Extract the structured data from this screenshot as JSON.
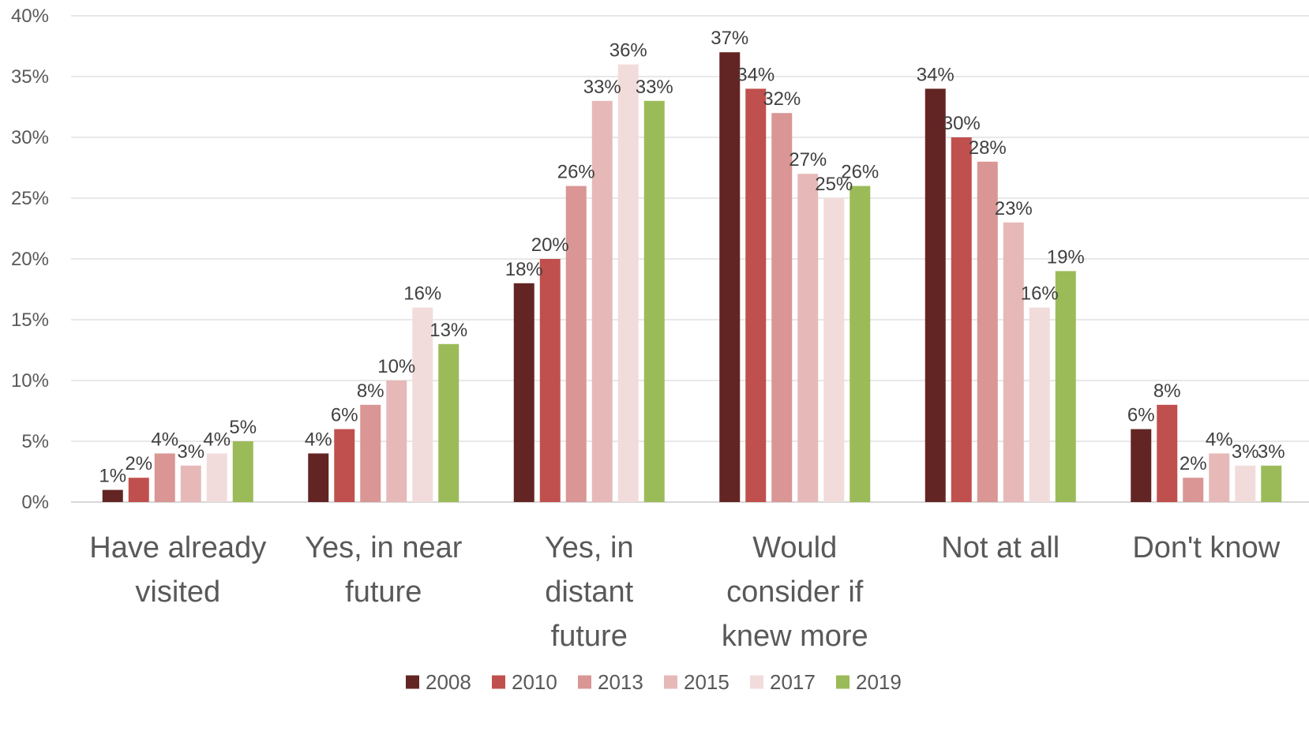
{
  "chart_data": {
    "type": "bar",
    "categories": [
      [
        "Have already",
        "visited"
      ],
      [
        "Yes, in near",
        "future"
      ],
      [
        "Yes, in",
        "distant",
        "future"
      ],
      [
        "Would",
        "consider if",
        "knew more"
      ],
      [
        "Not at all"
      ],
      [
        "Don't know"
      ]
    ],
    "series": [
      {
        "name": "2008",
        "color": "#632523",
        "values": [
          1,
          4,
          18,
          37,
          34,
          6
        ]
      },
      {
        "name": "2010",
        "color": "#C0504D",
        "values": [
          2,
          6,
          20,
          34,
          30,
          8
        ]
      },
      {
        "name": "2013",
        "color": "#D99694",
        "values": [
          4,
          8,
          26,
          32,
          28,
          2
        ]
      },
      {
        "name": "2015",
        "color": "#E6B9B8",
        "values": [
          3,
          10,
          33,
          27,
          23,
          4
        ]
      },
      {
        "name": "2017",
        "color": "#F2DCDB",
        "values": [
          4,
          16,
          36,
          25,
          16,
          3
        ]
      },
      {
        "name": "2019",
        "color": "#9BBB59",
        "values": [
          5,
          13,
          33,
          26,
          19,
          3
        ]
      }
    ],
    "ylim": [
      0,
      40
    ],
    "yticks": [
      "0%",
      "5%",
      "10%",
      "15%",
      "20%",
      "25%",
      "30%",
      "35%",
      "40%"
    ],
    "value_suffix": "%",
    "grid": true,
    "legend": "bottom"
  }
}
